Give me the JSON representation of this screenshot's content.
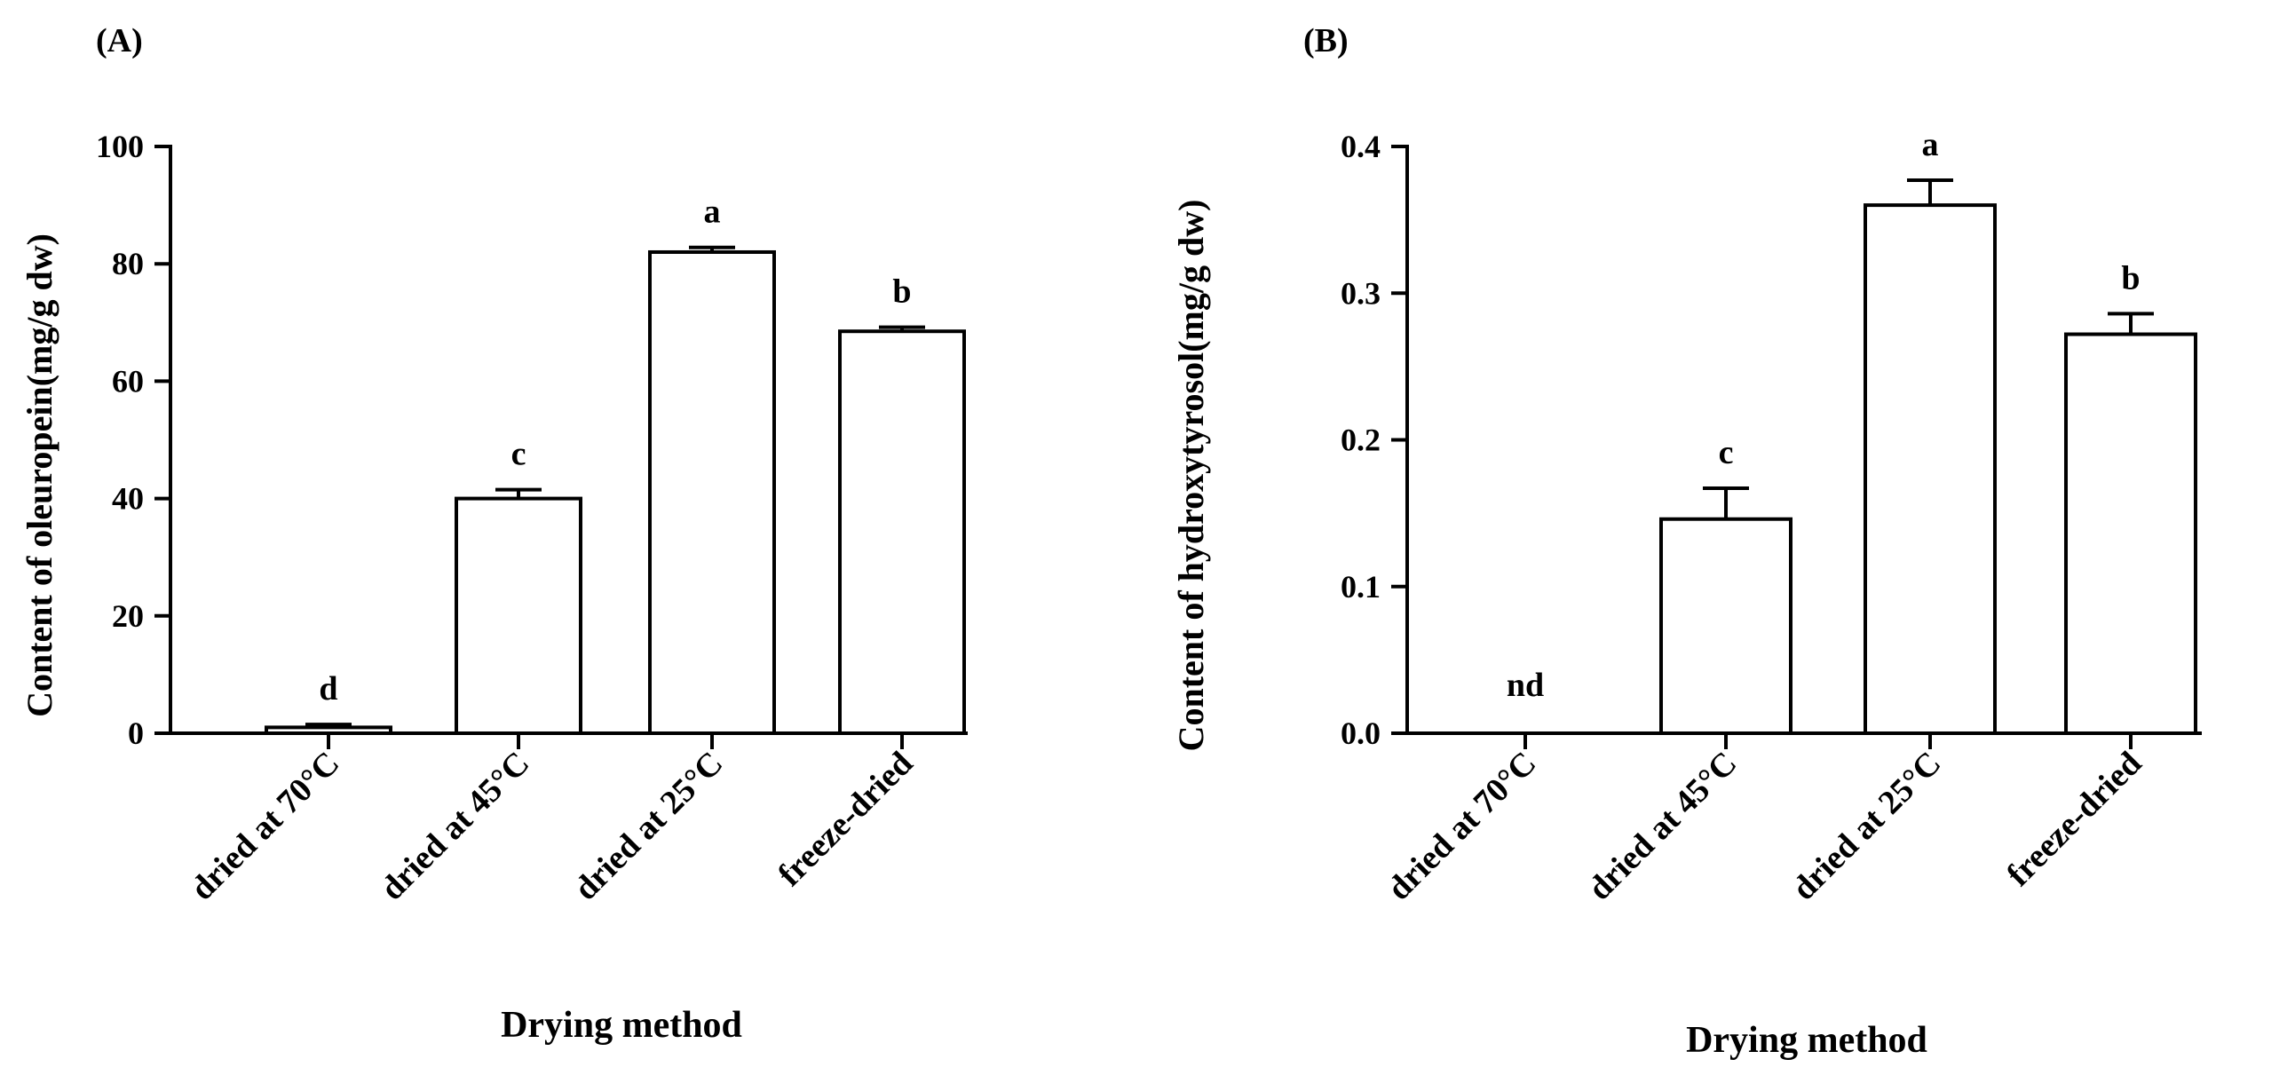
{
  "colors": {
    "ink": "#000000",
    "bar_fill": "#ffffff"
  },
  "chart_data": [
    {
      "type": "bar",
      "panel_label": "(A)",
      "title": "",
      "xlabel": "Drying method",
      "ylabel": "Content of oleuropein(mg/g dw)",
      "categories": [
        "dried at 70°C",
        "dried at 45°C",
        "dried at 25°C",
        "freeze-dried"
      ],
      "values": [
        1,
        40,
        82,
        68.5
      ],
      "errors": [
        0.5,
        1.5,
        0.8,
        0.7
      ],
      "letters": [
        "d",
        "c",
        "a",
        "b"
      ],
      "ylim": [
        0,
        100
      ],
      "yticks": [
        0,
        20,
        40,
        60,
        80,
        100
      ],
      "ytick_labels": [
        "0",
        "20",
        "40",
        "60",
        "80",
        "100"
      ]
    },
    {
      "type": "bar",
      "panel_label": "(B)",
      "title": "",
      "xlabel": "Drying method",
      "ylabel": "Content of hydroxytyrosol(mg/g dw)",
      "categories": [
        "dried at 70°C",
        "dried at 45°C",
        "dried at 25°C",
        "freeze-dried"
      ],
      "values": [
        0,
        0.146,
        0.36,
        0.272
      ],
      "errors": [
        0,
        0.021,
        0.017,
        0.014
      ],
      "letters": [
        "nd",
        "c",
        "a",
        "b"
      ],
      "ylim": [
        0,
        0.4
      ],
      "yticks": [
        0,
        0.1,
        0.2,
        0.3,
        0.4
      ],
      "ytick_labels": [
        "0.0",
        "0.1",
        "0.2",
        "0.3",
        "0.4"
      ]
    }
  ]
}
